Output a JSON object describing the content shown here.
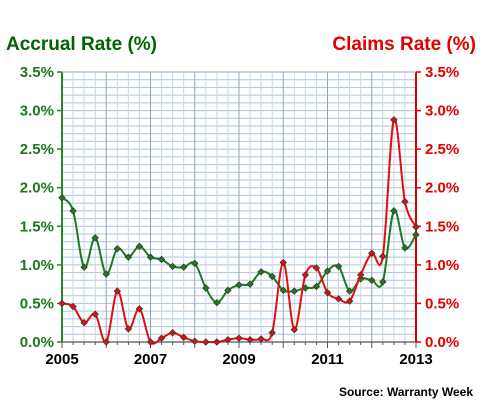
{
  "chart_data": {
    "type": "line",
    "title_left": "Accrual Rate (%)",
    "title_right": "Claims Rate (%)",
    "source": "Source: Warranty Week",
    "x_ticks": [
      "2005",
      "2007",
      "2009",
      "2011",
      "2013"
    ],
    "xlim": [
      2005,
      2013
    ],
    "y_left": {
      "ticks": [
        "3.5%",
        "3.0%",
        "2.5%",
        "2.0%",
        "1.5%",
        "1.0%",
        "0.5%",
        "0.0%"
      ],
      "ylim": [
        0,
        3.5
      ]
    },
    "y_right": {
      "ticks": [
        "3.5%",
        "3.0%",
        "2.5%",
        "2.0%",
        "1.5%",
        "1.0%",
        "0.5%",
        "0.0%"
      ],
      "ylim": [
        0,
        3.5
      ]
    },
    "grid": true,
    "series": [
      {
        "name": "Accrual Rate (%)",
        "axis": "left",
        "color": "#1f7a1f",
        "points": [
          [
            2005.0,
            1.87
          ],
          [
            2005.25,
            1.7
          ],
          [
            2005.5,
            0.97
          ],
          [
            2005.75,
            1.35
          ],
          [
            2006.0,
            0.88
          ],
          [
            2006.25,
            1.21
          ],
          [
            2006.5,
            1.1
          ],
          [
            2006.75,
            1.24
          ],
          [
            2007.0,
            1.1
          ],
          [
            2007.25,
            1.07
          ],
          [
            2007.5,
            0.98
          ],
          [
            2007.75,
            0.97
          ],
          [
            2008.0,
            1.02
          ],
          [
            2008.25,
            0.7
          ],
          [
            2008.5,
            0.51
          ],
          [
            2008.75,
            0.67
          ],
          [
            2009.0,
            0.74
          ],
          [
            2009.25,
            0.75
          ],
          [
            2009.5,
            0.91
          ],
          [
            2009.75,
            0.85
          ],
          [
            2010.0,
            0.67
          ],
          [
            2010.25,
            0.66
          ],
          [
            2010.5,
            0.7
          ],
          [
            2010.75,
            0.72
          ],
          [
            2011.0,
            0.92
          ],
          [
            2011.25,
            0.98
          ],
          [
            2011.5,
            0.66
          ],
          [
            2011.75,
            0.82
          ],
          [
            2012.0,
            0.8
          ],
          [
            2012.25,
            0.78
          ],
          [
            2012.5,
            1.7
          ],
          [
            2012.75,
            1.22
          ],
          [
            2013.0,
            1.39
          ]
        ]
      },
      {
        "name": "Claims Rate (%)",
        "axis": "right",
        "color": "#e01010",
        "points": [
          [
            2005.0,
            0.5
          ],
          [
            2005.25,
            0.46
          ],
          [
            2005.5,
            0.25
          ],
          [
            2005.75,
            0.36
          ],
          [
            2006.0,
            0.0
          ],
          [
            2006.25,
            0.66
          ],
          [
            2006.5,
            0.17
          ],
          [
            2006.75,
            0.43
          ],
          [
            2007.0,
            0.0
          ],
          [
            2007.25,
            0.05
          ],
          [
            2007.5,
            0.12
          ],
          [
            2007.75,
            0.06
          ],
          [
            2008.0,
            0.01
          ],
          [
            2008.25,
            0.0
          ],
          [
            2008.5,
            0.0
          ],
          [
            2008.75,
            0.03
          ],
          [
            2009.0,
            0.05
          ],
          [
            2009.25,
            0.03
          ],
          [
            2009.5,
            0.04
          ],
          [
            2009.75,
            0.12
          ],
          [
            2010.0,
            1.03
          ],
          [
            2010.25,
            0.16
          ],
          [
            2010.5,
            0.87
          ],
          [
            2010.75,
            0.96
          ],
          [
            2011.0,
            0.64
          ],
          [
            2011.25,
            0.56
          ],
          [
            2011.5,
            0.53
          ],
          [
            2011.75,
            0.87
          ],
          [
            2012.0,
            1.15
          ],
          [
            2012.25,
            1.11
          ],
          [
            2012.5,
            2.88
          ],
          [
            2012.75,
            1.82
          ],
          [
            2013.0,
            1.49
          ]
        ]
      }
    ]
  }
}
